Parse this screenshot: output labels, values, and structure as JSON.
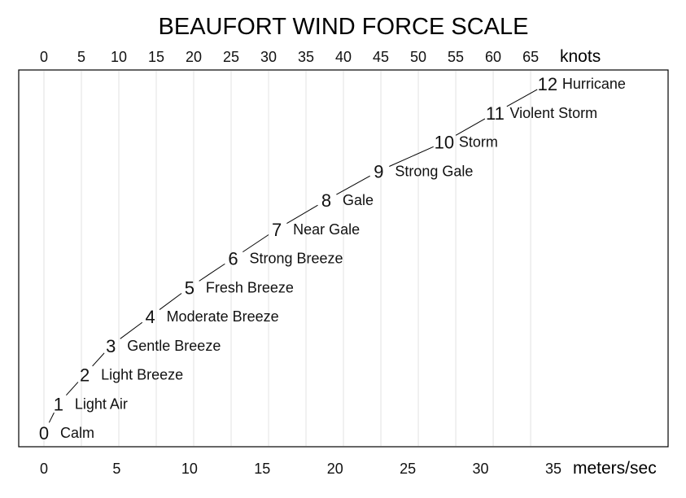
{
  "chart_data": {
    "type": "line",
    "title": "BEAUFORT WIND FORCE SCALE",
    "xlabel": "meters/sec",
    "x2label": "knots",
    "xlim": [
      0,
      43
    ],
    "ylim": [
      -0.3,
      12.5
    ],
    "bottom_ticks": [
      0,
      5,
      10,
      15,
      20,
      25,
      30,
      35
    ],
    "top_ticks": [
      0,
      5,
      10,
      15,
      20,
      25,
      30,
      35,
      40,
      45,
      50,
      55,
      60,
      65
    ],
    "grid": true,
    "series": [
      {
        "points": [
          {
            "force": "0",
            "label": "Calm",
            "x": 0.0
          },
          {
            "force": "1",
            "label": "Light Air",
            "x": 1.0
          },
          {
            "force": "2",
            "label": "Light Breeze",
            "x": 2.8
          },
          {
            "force": "3",
            "label": "Gentle Breeze",
            "x": 4.6
          },
          {
            "force": "4",
            "label": "Moderate Breeze",
            "x": 7.3
          },
          {
            "force": "5",
            "label": "Fresh Breeze",
            "x": 10.0
          },
          {
            "force": "6",
            "label": "Strong Breeze",
            "x": 13.0
          },
          {
            "force": "7",
            "label": "Near Gale",
            "x": 16.0
          },
          {
            "force": "8",
            "label": "Gale",
            "x": 19.4
          },
          {
            "force": "9",
            "label": "Strong Gale",
            "x": 23.0
          },
          {
            "force": "10",
            "label": "Storm",
            "x": 27.5
          },
          {
            "force": "11",
            "label": "Violent Storm",
            "x": 31.0
          },
          {
            "force": "12",
            "label": "Hurricane",
            "x": 34.6
          }
        ]
      }
    ],
    "colors": {
      "background": "#ffffff",
      "text": "#111111",
      "frame": "#000000",
      "grid": "#e2e2e2",
      "line": "#000000"
    }
  }
}
